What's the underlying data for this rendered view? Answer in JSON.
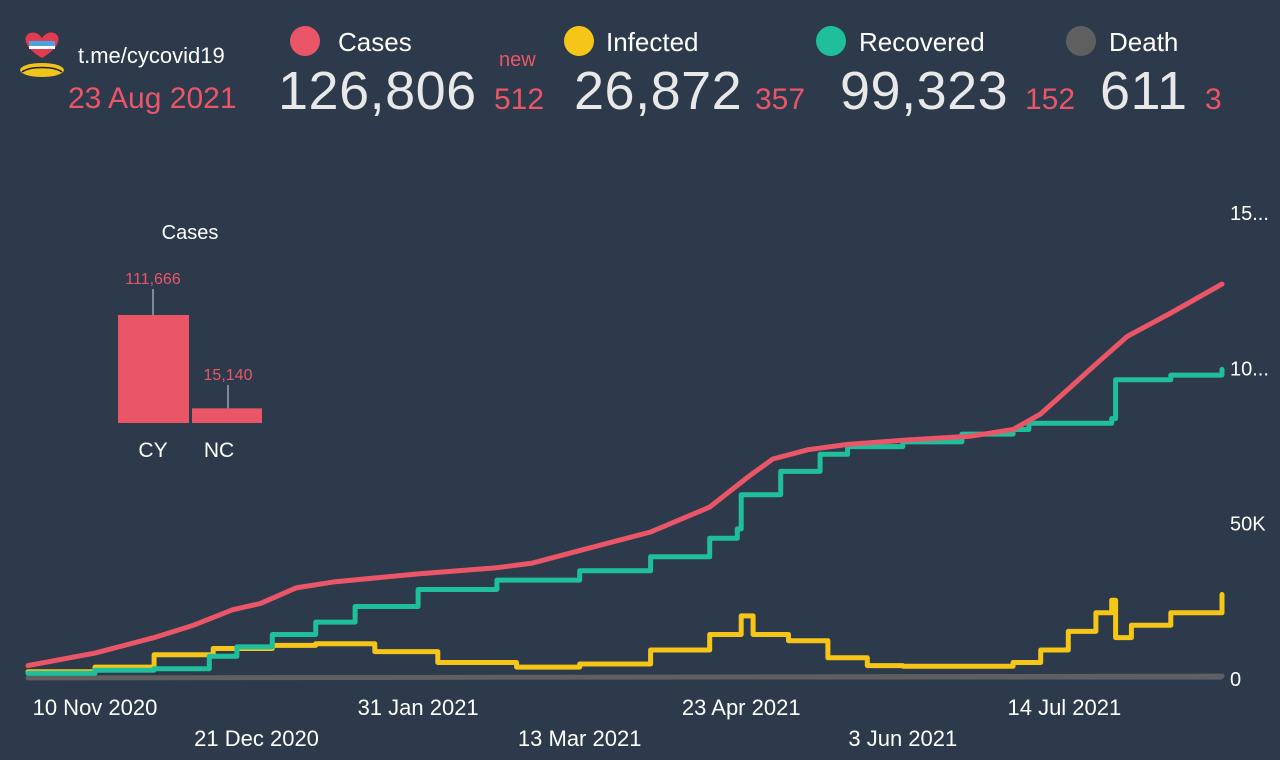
{
  "header": {
    "url": "t.me/cycovid19",
    "date": "23 Aug 2021",
    "new_label": "new",
    "stats": [
      {
        "label": "Cases",
        "value": "126,806",
        "delta": "512",
        "color": "#ea5667"
      },
      {
        "label": "Infected",
        "value": "26,872",
        "delta": "357",
        "color": "#f5c518"
      },
      {
        "label": "Recovered",
        "value": "99,323",
        "delta": "152",
        "color": "#1fbf9c"
      },
      {
        "label": "Death",
        "value": "611",
        "delta": "3",
        "color": "#5f5f5f"
      }
    ]
  },
  "chart_data": [
    {
      "type": "bar",
      "title": "Cases",
      "categories": [
        "CY",
        "NC"
      ],
      "values": [
        111666,
        15140
      ],
      "value_labels": [
        "111,666",
        "15,140"
      ],
      "color": "#ea5667"
    },
    {
      "type": "line",
      "xlabel": "",
      "ylabel": "",
      "x_tick_labels": [
        "10 Nov 2020",
        "21 Dec 2020",
        "31 Jan 2021",
        "13 Mar 2021",
        "23 Apr 2021",
        "3 Jun 2021",
        "14 Jul 2021"
      ],
      "y_tick_labels": [
        "0",
        "50K",
        "10...",
        "15..."
      ],
      "ylim": [
        0,
        150000
      ],
      "x_start": "2020-10-24",
      "x_end": "2021-08-23",
      "axis": "right",
      "grid": false,
      "series": [
        {
          "name": "Cases",
          "color": "#ea5667",
          "step": false,
          "points": [
            [
              "2020-10-24",
              4000
            ],
            [
              "2020-11-10",
              8000
            ],
            [
              "2020-11-25",
              13000
            ],
            [
              "2020-12-05",
              17000
            ],
            [
              "2020-12-15",
              22000
            ],
            [
              "2020-12-22",
              24000
            ],
            [
              "2020-12-31",
              29000
            ],
            [
              "2021-01-10",
              31000
            ],
            [
              "2021-01-31",
              33500
            ],
            [
              "2021-02-20",
              35500
            ],
            [
              "2021-03-01",
              37000
            ],
            [
              "2021-03-13",
              41000
            ],
            [
              "2021-03-31",
              47000
            ],
            [
              "2021-04-15",
              55000
            ],
            [
              "2021-04-25",
              65000
            ],
            [
              "2021-05-01",
              70500
            ],
            [
              "2021-05-10",
              73500
            ],
            [
              "2021-05-20",
              75200
            ],
            [
              "2021-06-03",
              76500
            ],
            [
              "2021-06-20",
              77800
            ],
            [
              "2021-07-01",
              80000
            ],
            [
              "2021-07-08",
              85000
            ],
            [
              "2021-07-15",
              93000
            ],
            [
              "2021-07-22",
              101000
            ],
            [
              "2021-07-30",
              110000
            ],
            [
              "2021-08-10",
              117500
            ],
            [
              "2021-08-23",
              126806
            ]
          ]
        },
        {
          "name": "Infected",
          "color": "#f5c518",
          "step": true,
          "points": [
            [
              "2020-10-24",
              2000
            ],
            [
              "2020-11-10",
              3500
            ],
            [
              "2020-11-25",
              7500
            ],
            [
              "2020-12-10",
              9500
            ],
            [
              "2020-12-25",
              10500
            ],
            [
              "2021-01-05",
              11000
            ],
            [
              "2021-01-20",
              8500
            ],
            [
              "2021-02-05",
              5000
            ],
            [
              "2021-02-25",
              3500
            ],
            [
              "2021-03-13",
              4500
            ],
            [
              "2021-03-31",
              9000
            ],
            [
              "2021-04-15",
              14000
            ],
            [
              "2021-04-23",
              20000
            ],
            [
              "2021-04-26",
              14000
            ],
            [
              "2021-05-05",
              12000
            ],
            [
              "2021-05-15",
              6500
            ],
            [
              "2021-05-25",
              4000
            ],
            [
              "2021-06-03",
              3800
            ],
            [
              "2021-06-18",
              3800
            ],
            [
              "2021-07-01",
              5000
            ],
            [
              "2021-07-08",
              9000
            ],
            [
              "2021-07-15",
              15000
            ],
            [
              "2021-07-22",
              21000
            ],
            [
              "2021-07-26",
              25000
            ],
            [
              "2021-07-27",
              13000
            ],
            [
              "2021-07-31",
              17000
            ],
            [
              "2021-08-10",
              21000
            ],
            [
              "2021-08-23",
              26872
            ]
          ]
        },
        {
          "name": "Recovered",
          "color": "#1fbf9c",
          "step": true,
          "points": [
            [
              "2020-10-24",
              1500
            ],
            [
              "2020-11-10",
              2500
            ],
            [
              "2020-11-25",
              3000
            ],
            [
              "2020-12-02",
              3000
            ],
            [
              "2020-12-09",
              7000
            ],
            [
              "2020-12-16",
              10000
            ],
            [
              "2020-12-25",
              14000
            ],
            [
              "2021-01-05",
              18000
            ],
            [
              "2021-01-15",
              23000
            ],
            [
              "2021-01-31",
              28500
            ],
            [
              "2021-02-20",
              31500
            ],
            [
              "2021-03-13",
              34500
            ],
            [
              "2021-03-31",
              39000
            ],
            [
              "2021-04-15",
              45000
            ],
            [
              "2021-04-22",
              48000
            ],
            [
              "2021-04-23",
              59000
            ],
            [
              "2021-05-03",
              66500
            ],
            [
              "2021-05-13",
              72000
            ],
            [
              "2021-05-20",
              74500
            ],
            [
              "2021-06-03",
              76000
            ],
            [
              "2021-06-18",
              78500
            ],
            [
              "2021-07-01",
              80000
            ],
            [
              "2021-07-05",
              82000
            ],
            [
              "2021-07-26",
              83500
            ],
            [
              "2021-07-27",
              96000
            ],
            [
              "2021-08-10",
              97500
            ],
            [
              "2021-08-23",
              99323
            ]
          ]
        },
        {
          "name": "Death",
          "color": "#5f5f5f",
          "step": false,
          "points": [
            [
              "2020-10-24",
              30
            ],
            [
              "2021-04-01",
              300
            ],
            [
              "2021-08-23",
              611
            ]
          ]
        }
      ]
    }
  ]
}
